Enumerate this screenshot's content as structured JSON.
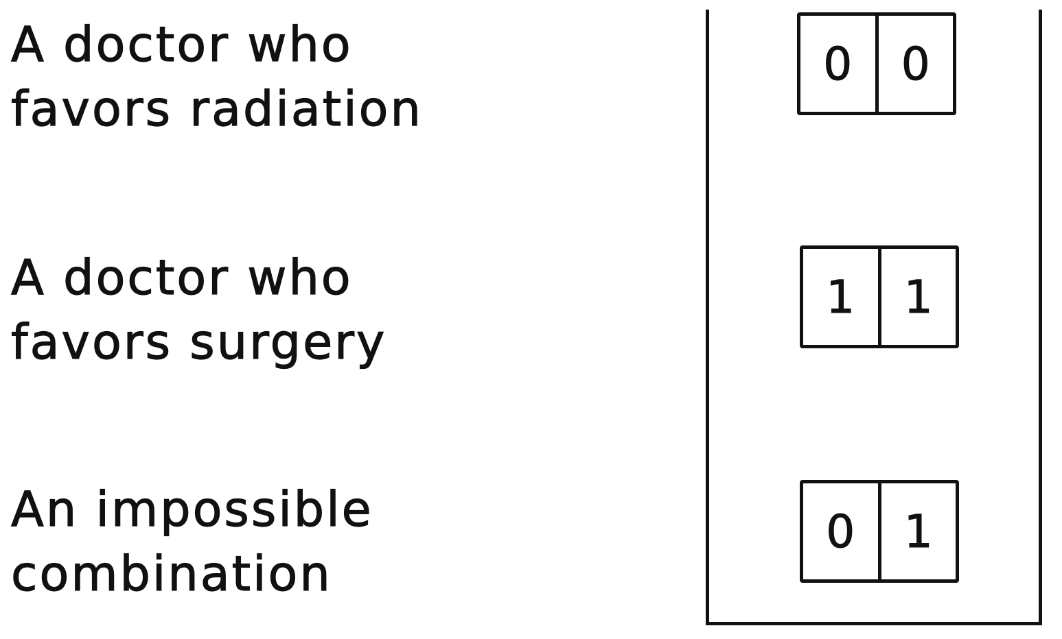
{
  "rows": [
    {
      "label_lines": [
        "A doctor who",
        "favors radiation"
      ],
      "bits": [
        "0",
        "0"
      ]
    },
    {
      "label_lines": [
        "A doctor who",
        "favors surgery"
      ],
      "bits": [
        "1",
        "1"
      ]
    },
    {
      "label_lines": [
        "An impossible",
        "combination"
      ],
      "bits": [
        "0",
        "1"
      ]
    }
  ]
}
